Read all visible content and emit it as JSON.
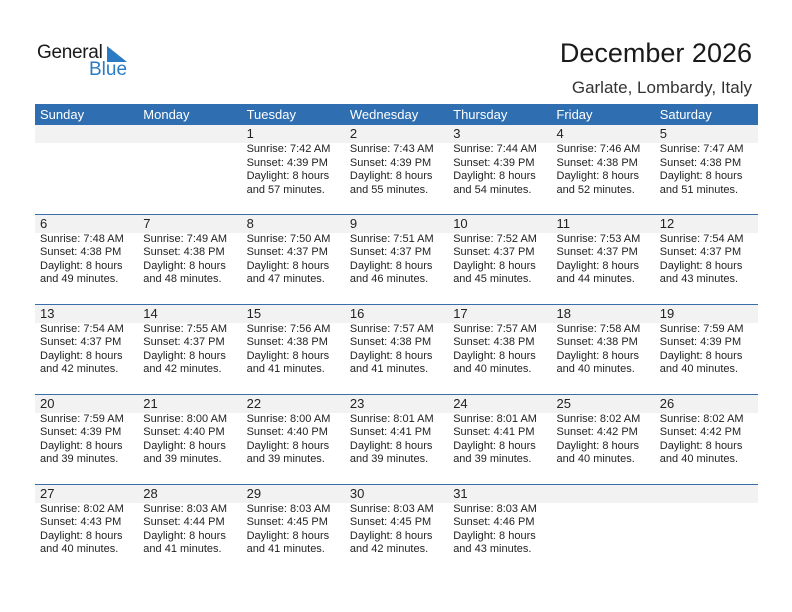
{
  "logo": {
    "word1": "General",
    "word2": "Blue",
    "color": "#2a7bc4"
  },
  "title": "December 2026",
  "location": "Garlate, Lombardy, Italy",
  "header_color": "#2f6fb1",
  "days": [
    "Sunday",
    "Monday",
    "Tuesday",
    "Wednesday",
    "Thursday",
    "Friday",
    "Saturday"
  ],
  "weeks": [
    [
      null,
      null,
      {
        "day": "1",
        "sunrise": "Sunrise: 7:42 AM",
        "sunset": "Sunset: 4:39 PM",
        "daylight1": "Daylight: 8 hours",
        "daylight2": "and 57 minutes."
      },
      {
        "day": "2",
        "sunrise": "Sunrise: 7:43 AM",
        "sunset": "Sunset: 4:39 PM",
        "daylight1": "Daylight: 8 hours",
        "daylight2": "and 55 minutes."
      },
      {
        "day": "3",
        "sunrise": "Sunrise: 7:44 AM",
        "sunset": "Sunset: 4:39 PM",
        "daylight1": "Daylight: 8 hours",
        "daylight2": "and 54 minutes."
      },
      {
        "day": "4",
        "sunrise": "Sunrise: 7:46 AM",
        "sunset": "Sunset: 4:38 PM",
        "daylight1": "Daylight: 8 hours",
        "daylight2": "and 52 minutes."
      },
      {
        "day": "5",
        "sunrise": "Sunrise: 7:47 AM",
        "sunset": "Sunset: 4:38 PM",
        "daylight1": "Daylight: 8 hours",
        "daylight2": "and 51 minutes."
      }
    ],
    [
      {
        "day": "6",
        "sunrise": "Sunrise: 7:48 AM",
        "sunset": "Sunset: 4:38 PM",
        "daylight1": "Daylight: 8 hours",
        "daylight2": "and 49 minutes."
      },
      {
        "day": "7",
        "sunrise": "Sunrise: 7:49 AM",
        "sunset": "Sunset: 4:38 PM",
        "daylight1": "Daylight: 8 hours",
        "daylight2": "and 48 minutes."
      },
      {
        "day": "8",
        "sunrise": "Sunrise: 7:50 AM",
        "sunset": "Sunset: 4:37 PM",
        "daylight1": "Daylight: 8 hours",
        "daylight2": "and 47 minutes."
      },
      {
        "day": "9",
        "sunrise": "Sunrise: 7:51 AM",
        "sunset": "Sunset: 4:37 PM",
        "daylight1": "Daylight: 8 hours",
        "daylight2": "and 46 minutes."
      },
      {
        "day": "10",
        "sunrise": "Sunrise: 7:52 AM",
        "sunset": "Sunset: 4:37 PM",
        "daylight1": "Daylight: 8 hours",
        "daylight2": "and 45 minutes."
      },
      {
        "day": "11",
        "sunrise": "Sunrise: 7:53 AM",
        "sunset": "Sunset: 4:37 PM",
        "daylight1": "Daylight: 8 hours",
        "daylight2": "and 44 minutes."
      },
      {
        "day": "12",
        "sunrise": "Sunrise: 7:54 AM",
        "sunset": "Sunset: 4:37 PM",
        "daylight1": "Daylight: 8 hours",
        "daylight2": "and 43 minutes."
      }
    ],
    [
      {
        "day": "13",
        "sunrise": "Sunrise: 7:54 AM",
        "sunset": "Sunset: 4:37 PM",
        "daylight1": "Daylight: 8 hours",
        "daylight2": "and 42 minutes."
      },
      {
        "day": "14",
        "sunrise": "Sunrise: 7:55 AM",
        "sunset": "Sunset: 4:37 PM",
        "daylight1": "Daylight: 8 hours",
        "daylight2": "and 42 minutes."
      },
      {
        "day": "15",
        "sunrise": "Sunrise: 7:56 AM",
        "sunset": "Sunset: 4:38 PM",
        "daylight1": "Daylight: 8 hours",
        "daylight2": "and 41 minutes."
      },
      {
        "day": "16",
        "sunrise": "Sunrise: 7:57 AM",
        "sunset": "Sunset: 4:38 PM",
        "daylight1": "Daylight: 8 hours",
        "daylight2": "and 41 minutes."
      },
      {
        "day": "17",
        "sunrise": "Sunrise: 7:57 AM",
        "sunset": "Sunset: 4:38 PM",
        "daylight1": "Daylight: 8 hours",
        "daylight2": "and 40 minutes."
      },
      {
        "day": "18",
        "sunrise": "Sunrise: 7:58 AM",
        "sunset": "Sunset: 4:38 PM",
        "daylight1": "Daylight: 8 hours",
        "daylight2": "and 40 minutes."
      },
      {
        "day": "19",
        "sunrise": "Sunrise: 7:59 AM",
        "sunset": "Sunset: 4:39 PM",
        "daylight1": "Daylight: 8 hours",
        "daylight2": "and 40 minutes."
      }
    ],
    [
      {
        "day": "20",
        "sunrise": "Sunrise: 7:59 AM",
        "sunset": "Sunset: 4:39 PM",
        "daylight1": "Daylight: 8 hours",
        "daylight2": "and 39 minutes."
      },
      {
        "day": "21",
        "sunrise": "Sunrise: 8:00 AM",
        "sunset": "Sunset: 4:40 PM",
        "daylight1": "Daylight: 8 hours",
        "daylight2": "and 39 minutes."
      },
      {
        "day": "22",
        "sunrise": "Sunrise: 8:00 AM",
        "sunset": "Sunset: 4:40 PM",
        "daylight1": "Daylight: 8 hours",
        "daylight2": "and 39 minutes."
      },
      {
        "day": "23",
        "sunrise": "Sunrise: 8:01 AM",
        "sunset": "Sunset: 4:41 PM",
        "daylight1": "Daylight: 8 hours",
        "daylight2": "and 39 minutes."
      },
      {
        "day": "24",
        "sunrise": "Sunrise: 8:01 AM",
        "sunset": "Sunset: 4:41 PM",
        "daylight1": "Daylight: 8 hours",
        "daylight2": "and 39 minutes."
      },
      {
        "day": "25",
        "sunrise": "Sunrise: 8:02 AM",
        "sunset": "Sunset: 4:42 PM",
        "daylight1": "Daylight: 8 hours",
        "daylight2": "and 40 minutes."
      },
      {
        "day": "26",
        "sunrise": "Sunrise: 8:02 AM",
        "sunset": "Sunset: 4:42 PM",
        "daylight1": "Daylight: 8 hours",
        "daylight2": "and 40 minutes."
      }
    ],
    [
      {
        "day": "27",
        "sunrise": "Sunrise: 8:02 AM",
        "sunset": "Sunset: 4:43 PM",
        "daylight1": "Daylight: 8 hours",
        "daylight2": "and 40 minutes."
      },
      {
        "day": "28",
        "sunrise": "Sunrise: 8:03 AM",
        "sunset": "Sunset: 4:44 PM",
        "daylight1": "Daylight: 8 hours",
        "daylight2": "and 41 minutes."
      },
      {
        "day": "29",
        "sunrise": "Sunrise: 8:03 AM",
        "sunset": "Sunset: 4:45 PM",
        "daylight1": "Daylight: 8 hours",
        "daylight2": "and 41 minutes."
      },
      {
        "day": "30",
        "sunrise": "Sunrise: 8:03 AM",
        "sunset": "Sunset: 4:45 PM",
        "daylight1": "Daylight: 8 hours",
        "daylight2": "and 42 minutes."
      },
      {
        "day": "31",
        "sunrise": "Sunrise: 8:03 AM",
        "sunset": "Sunset: 4:46 PM",
        "daylight1": "Daylight: 8 hours",
        "daylight2": "and 43 minutes."
      },
      null,
      null
    ]
  ]
}
